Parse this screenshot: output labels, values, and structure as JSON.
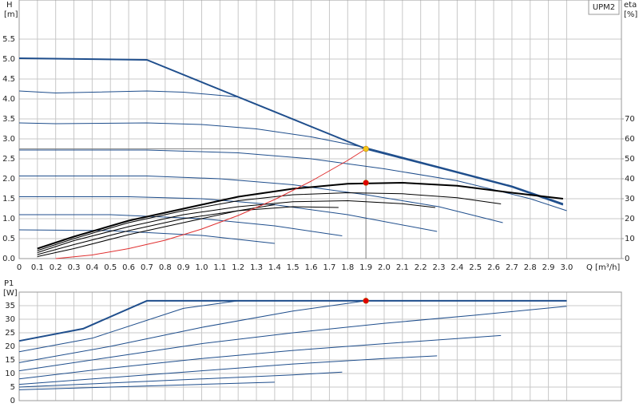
{
  "chart_data": [
    {
      "type": "line",
      "y_label": "H",
      "y_unit": "[m]",
      "y2_label": "eta",
      "y2_unit": "[%]",
      "x_label": "Q [m³/h]",
      "legend_box": "UPM2",
      "xlim": [
        0,
        3.3
      ],
      "ylim": [
        0,
        6.48
      ],
      "y2lim": [
        0,
        129.6
      ],
      "grid": true,
      "xticks": [
        0,
        0.1,
        0.2,
        0.3,
        0.4,
        0.5,
        0.6,
        0.7,
        0.8,
        0.9,
        {
          "value": 1,
          "label": "1.0"
        },
        1.1,
        1.2,
        1.3,
        1.4,
        1.5,
        1.6,
        1.7,
        1.8,
        1.9,
        {
          "value": 2,
          "label": "2.0"
        },
        2.1,
        2.2,
        2.3,
        2.4,
        2.5,
        2.6,
        2.7,
        2.8,
        2.9,
        {
          "value": 3,
          "label": "3.0"
        }
      ],
      "yticks": [
        {
          "value": 0,
          "label": "0.0"
        },
        0.5,
        {
          "value": 1,
          "label": "1.0"
        },
        1.5,
        {
          "value": 2,
          "label": "2.0"
        },
        2.5,
        {
          "value": 3,
          "label": "3.0"
        },
        3.5,
        {
          "value": 4,
          "label": "4.0"
        },
        4.5,
        {
          "value": 5,
          "label": "5.0"
        },
        5.5
      ],
      "y2ticks": [
        0,
        10,
        20,
        30,
        40,
        50,
        60,
        70
      ],
      "series": [
        {
          "color": "#1f4e8c",
          "width": 2,
          "x": [
            0,
            0.7,
            1.2,
            1.9,
            2.3,
            2.7,
            2.98
          ],
          "values": [
            5.02,
            4.98,
            4.05,
            2.75,
            2.28,
            1.8,
            1.35
          ]
        },
        {
          "color": "#1f4e8c",
          "width": 1,
          "x": [
            0,
            0.2,
            0.7,
            0.9,
            1.2
          ],
          "values": [
            4.2,
            4.15,
            4.2,
            4.17,
            4.05
          ]
        },
        {
          "color": "#1f4e8c",
          "width": 1,
          "x": [
            0,
            0.2,
            0.7,
            1.0,
            1.3,
            1.6,
            1.9,
            2.3,
            2.7,
            2.98
          ],
          "values": [
            3.4,
            3.38,
            3.4,
            3.36,
            3.25,
            3.05,
            2.78,
            2.3,
            1.82,
            1.38
          ]
        },
        {
          "color": "#1f4e8c",
          "width": 1,
          "x": [
            0,
            0.7,
            1.2,
            1.6,
            2.0,
            2.4,
            2.8,
            3.0
          ],
          "values": [
            2.72,
            2.72,
            2.65,
            2.5,
            2.25,
            1.95,
            1.5,
            1.2
          ]
        },
        {
          "color": "#1f4e8c",
          "width": 1,
          "x": [
            0,
            0.7,
            1.1,
            1.5,
            1.9,
            2.3,
            2.65
          ],
          "values": [
            2.07,
            2.07,
            2.0,
            1.85,
            1.6,
            1.3,
            0.9
          ]
        },
        {
          "color": "#1f4e8c",
          "width": 1,
          "x": [
            0,
            0.6,
            1.0,
            1.4,
            1.8,
            2.29
          ],
          "values": [
            1.55,
            1.55,
            1.5,
            1.35,
            1.1,
            0.68
          ]
        },
        {
          "color": "#1f4e8c",
          "width": 1,
          "x": [
            0,
            0.5,
            1.0,
            1.4,
            1.77
          ],
          "values": [
            1.1,
            1.1,
            1.0,
            0.82,
            0.57
          ]
        },
        {
          "color": "#1f4e8c",
          "width": 1,
          "x": [
            0,
            0.5,
            1.0,
            1.4
          ],
          "values": [
            0.72,
            0.7,
            0.58,
            0.38
          ]
        },
        {
          "color": "#000000",
          "width": 2,
          "axis": "y2",
          "x": [
            0.1,
            0.3,
            0.6,
            0.9,
            1.2,
            1.5,
            1.8,
            2.1,
            2.4,
            2.7,
            2.98
          ],
          "values": [
            5,
            11,
            19,
            25,
            31,
            35,
            37.5,
            38,
            36.5,
            33,
            30
          ]
        },
        {
          "color": "#000000",
          "width": 1,
          "axis": "y2",
          "x": [
            0.1,
            0.3,
            0.6,
            0.9,
            1.2,
            1.5,
            1.8,
            2.1,
            2.4,
            2.64
          ],
          "values": [
            4,
            10,
            18,
            24,
            29,
            32,
            33,
            32.5,
            30.5,
            27.4
          ]
        },
        {
          "color": "#000000",
          "width": 1,
          "axis": "y2",
          "x": [
            0.1,
            0.3,
            0.6,
            0.9,
            1.2,
            1.5,
            1.8,
            2.1,
            2.28
          ],
          "values": [
            3,
            9,
            16,
            22,
            26,
            28.5,
            29,
            27.5,
            25.6
          ]
        },
        {
          "color": "#000000",
          "width": 1,
          "axis": "y2",
          "x": [
            0.1,
            0.3,
            0.6,
            0.9,
            1.2,
            1.5,
            1.75
          ],
          "values": [
            2,
            7,
            14,
            20,
            24,
            26,
            25.6
          ]
        },
        {
          "color": "#000000",
          "width": 1,
          "axis": "y2",
          "x": [
            0.1,
            0.3,
            0.6,
            0.9,
            1.2,
            1.4
          ],
          "values": [
            1,
            5,
            12,
            18,
            24,
            27
          ]
        },
        {
          "color": "#e03030",
          "width": 1,
          "x": [
            0.2,
            0.4,
            0.6,
            0.8,
            1.0,
            1.2,
            1.4,
            1.6,
            1.8,
            1.9
          ],
          "values": [
            0,
            0.09,
            0.25,
            0.46,
            0.74,
            1.08,
            1.48,
            1.94,
            2.46,
            2.75
          ]
        }
      ],
      "markers": [
        {
          "x": 1.9,
          "y": 2.75,
          "color": "#f5c518",
          "guides": true
        },
        {
          "x": 1.9,
          "y": 38,
          "axis": "y2",
          "color": "#e00000"
        }
      ]
    },
    {
      "type": "line",
      "y_label": "P1",
      "y_unit": "[W]",
      "xlim": [
        0,
        3.3
      ],
      "ylim": [
        0,
        40
      ],
      "grid": true,
      "xticks": [
        0,
        0.1,
        0.2,
        0.3,
        0.4,
        0.5,
        0.6,
        0.7,
        0.8,
        0.9,
        1,
        1.1,
        1.2,
        1.3,
        1.4,
        1.5,
        1.6,
        1.7,
        1.8,
        1.9,
        2,
        2.1,
        2.2,
        2.3,
        2.4,
        2.5,
        2.6,
        2.7,
        2.8,
        2.9,
        3
      ],
      "yticks": [
        0,
        5,
        10,
        15,
        20,
        25,
        30,
        35
      ],
      "series": [
        {
          "color": "#1f4e8c",
          "width": 2,
          "x": [
            0,
            0.35,
            0.7,
            3.0
          ],
          "values": [
            22,
            26.5,
            36.8,
            36.8
          ]
        },
        {
          "color": "#1f4e8c",
          "width": 1,
          "x": [
            0,
            0.4,
            0.9,
            1.2,
            3.0
          ],
          "values": [
            18,
            23,
            34,
            36.8,
            36.8
          ]
        },
        {
          "color": "#1f4e8c",
          "width": 1,
          "x": [
            0,
            0.5,
            1.0,
            1.5,
            1.9,
            3.0
          ],
          "values": [
            14,
            20,
            27,
            33,
            36.8,
            36.8
          ]
        },
        {
          "color": "#1f4e8c",
          "width": 1,
          "x": [
            0,
            0.5,
            1.0,
            1.5,
            2.0,
            2.5,
            3.0
          ],
          "values": [
            11,
            16,
            21,
            25,
            28.5,
            31.5,
            34.8
          ]
        },
        {
          "color": "#1f4e8c",
          "width": 1,
          "x": [
            0,
            0.5,
            1.0,
            1.5,
            2.0,
            2.64
          ],
          "values": [
            8,
            12,
            15.5,
            18.5,
            21,
            24
          ]
        },
        {
          "color": "#1f4e8c",
          "width": 1,
          "x": [
            0,
            0.5,
            1.0,
            1.5,
            2.0,
            2.29
          ],
          "values": [
            6,
            8.5,
            11,
            13.5,
            15.5,
            16.5
          ]
        },
        {
          "color": "#1f4e8c",
          "width": 1,
          "x": [
            0,
            0.5,
            1.0,
            1.5,
            1.77
          ],
          "values": [
            5,
            6.5,
            8,
            9.5,
            10.5
          ]
        },
        {
          "color": "#1f4e8c",
          "width": 1,
          "x": [
            0,
            0.5,
            1.0,
            1.4
          ],
          "values": [
            4,
            5,
            6,
            6.8
          ]
        }
      ],
      "markers": [
        {
          "x": 1.9,
          "y": 36.8,
          "color": "#e00000"
        }
      ]
    }
  ]
}
